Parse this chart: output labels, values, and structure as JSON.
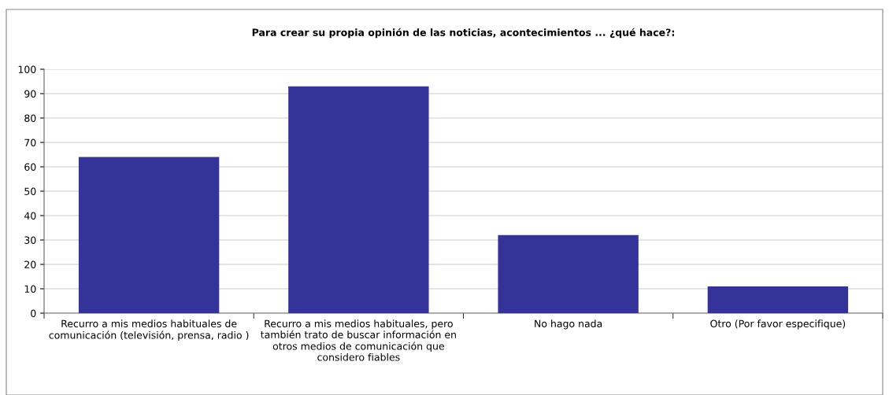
{
  "chart_data": {
    "type": "bar",
    "title": "Para crear su propia opinión de las noticias, acontecimientos ... ¿qué hace?:",
    "categories": [
      "Recurro a mis medios habituales de\ncomunicación (televisión, prensa, radio )",
      "Recurro a mis medios habituales, pero\ntambién trato de buscar información en\notros medios de comunicación que\nconsidero fiables",
      "No hago nada",
      "Otro (Por favor especifique)"
    ],
    "values": [
      64,
      93,
      32,
      11
    ],
    "color": "#333399",
    "ylim": [
      0,
      100
    ],
    "yticks": [
      0,
      10,
      20,
      30,
      40,
      50,
      60,
      70,
      80,
      90,
      100
    ],
    "grid": "y"
  }
}
